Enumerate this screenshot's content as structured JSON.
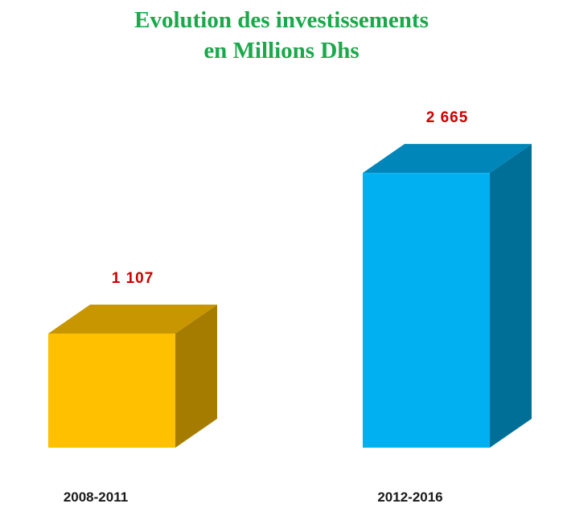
{
  "chart_data": {
    "type": "bar",
    "title": [
      "Evolution des investissements",
      "en Millions Dhs"
    ],
    "categories": [
      "2008-2011",
      "2012-2016"
    ],
    "values": [
      1107,
      2665
    ],
    "value_labels": [
      "1 107",
      "2 665"
    ],
    "ylim": [
      0,
      2900
    ],
    "grid": false,
    "legend": "none",
    "style": "3d-box",
    "colors": {
      "title": "#1aa84a",
      "value_label": "#cc0000",
      "category_label": "#1a1a1a",
      "bars": [
        {
          "front": "#ffc000",
          "top": "#c79600",
          "side": "#a67c00"
        },
        {
          "front": "#00b0f0",
          "top": "#0086b8",
          "side": "#006f98"
        }
      ]
    }
  }
}
